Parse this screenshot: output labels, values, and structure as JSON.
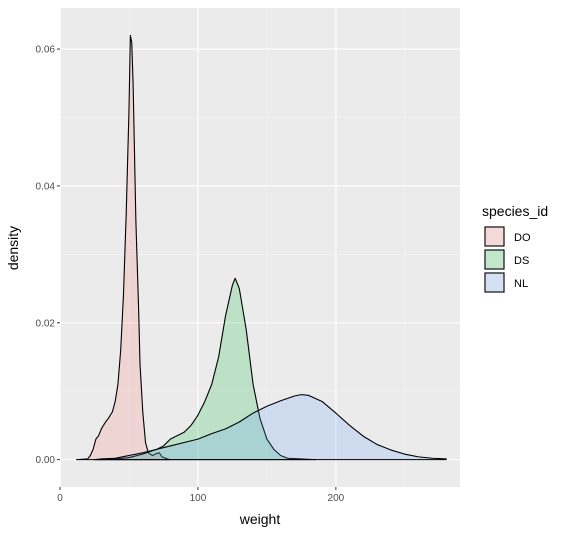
{
  "chart_data": {
    "type": "area",
    "xlabel": "weight",
    "ylabel": "density",
    "xlim": [
      0,
      290
    ],
    "ylim": [
      -0.004,
      0.066
    ],
    "x_ticks": [
      0,
      100,
      200
    ],
    "x_tick_labels": [
      "0",
      "100",
      "200"
    ],
    "y_ticks": [
      0.0,
      0.02,
      0.04,
      0.06
    ],
    "y_tick_labels": [
      "0.00",
      "0.02",
      "0.04",
      "0.06"
    ],
    "grid": true,
    "legend": {
      "title": "species_id",
      "position": "right",
      "entries": [
        "DO",
        "DS",
        "NL"
      ]
    },
    "series": [
      {
        "name": "DO",
        "fill": "#F8766D",
        "points": [
          [
            12,
            0
          ],
          [
            20,
            0.0001
          ],
          [
            22,
            0.0006
          ],
          [
            24,
            0.0015
          ],
          [
            26,
            0.003
          ],
          [
            28,
            0.0035
          ],
          [
            30,
            0.0045
          ],
          [
            33,
            0.0055
          ],
          [
            35,
            0.006
          ],
          [
            38,
            0.007
          ],
          [
            40,
            0.0085
          ],
          [
            42,
            0.011
          ],
          [
            44,
            0.016
          ],
          [
            46,
            0.024
          ],
          [
            48,
            0.036
          ],
          [
            50,
            0.051
          ],
          [
            51,
            0.062
          ],
          [
            52,
            0.061
          ],
          [
            53,
            0.055
          ],
          [
            54,
            0.045
          ],
          [
            55,
            0.035
          ],
          [
            57,
            0.022
          ],
          [
            58,
            0.014
          ],
          [
            60,
            0.007
          ],
          [
            62,
            0.0025
          ],
          [
            64,
            0.001
          ],
          [
            67,
            0.0006
          ],
          [
            70,
            0.0009
          ],
          [
            72,
            0.001
          ],
          [
            74,
            0.0004
          ],
          [
            78,
            0.0001
          ],
          [
            80,
            0
          ]
        ]
      },
      {
        "name": "DS",
        "fill": "#00BA38",
        "points": [
          [
            25,
            0
          ],
          [
            40,
            0.0001
          ],
          [
            50,
            0.0003
          ],
          [
            60,
            0.0008
          ],
          [
            70,
            0.0015
          ],
          [
            75,
            0.002
          ],
          [
            80,
            0.003
          ],
          [
            85,
            0.0035
          ],
          [
            90,
            0.004
          ],
          [
            95,
            0.005
          ],
          [
            100,
            0.0065
          ],
          [
            105,
            0.0085
          ],
          [
            110,
            0.011
          ],
          [
            115,
            0.015
          ],
          [
            120,
            0.021
          ],
          [
            125,
            0.0255
          ],
          [
            127,
            0.0265
          ],
          [
            130,
            0.025
          ],
          [
            135,
            0.019
          ],
          [
            140,
            0.011
          ],
          [
            145,
            0.006
          ],
          [
            150,
            0.003
          ],
          [
            155,
            0.0015
          ],
          [
            160,
            0.0006
          ],
          [
            165,
            0.0002
          ],
          [
            175,
            0.0001
          ],
          [
            185,
            0
          ]
        ]
      },
      {
        "name": "NL",
        "fill": "#619CFF",
        "points": [
          [
            25,
            0
          ],
          [
            30,
            0.0001
          ],
          [
            40,
            0.0002
          ],
          [
            50,
            0.0006
          ],
          [
            60,
            0.001
          ],
          [
            70,
            0.0015
          ],
          [
            80,
            0.002
          ],
          [
            90,
            0.0025
          ],
          [
            100,
            0.003
          ],
          [
            110,
            0.0038
          ],
          [
            120,
            0.0045
          ],
          [
            130,
            0.0055
          ],
          [
            140,
            0.0068
          ],
          [
            150,
            0.0078
          ],
          [
            160,
            0.0086
          ],
          [
            170,
            0.0093
          ],
          [
            175,
            0.0095
          ],
          [
            180,
            0.0094
          ],
          [
            190,
            0.0085
          ],
          [
            200,
            0.0068
          ],
          [
            210,
            0.005
          ],
          [
            220,
            0.0034
          ],
          [
            230,
            0.0022
          ],
          [
            240,
            0.0014
          ],
          [
            250,
            0.0008
          ],
          [
            260,
            0.0004
          ],
          [
            270,
            0.0002
          ],
          [
            280,
            0.0001
          ]
        ]
      }
    ]
  }
}
